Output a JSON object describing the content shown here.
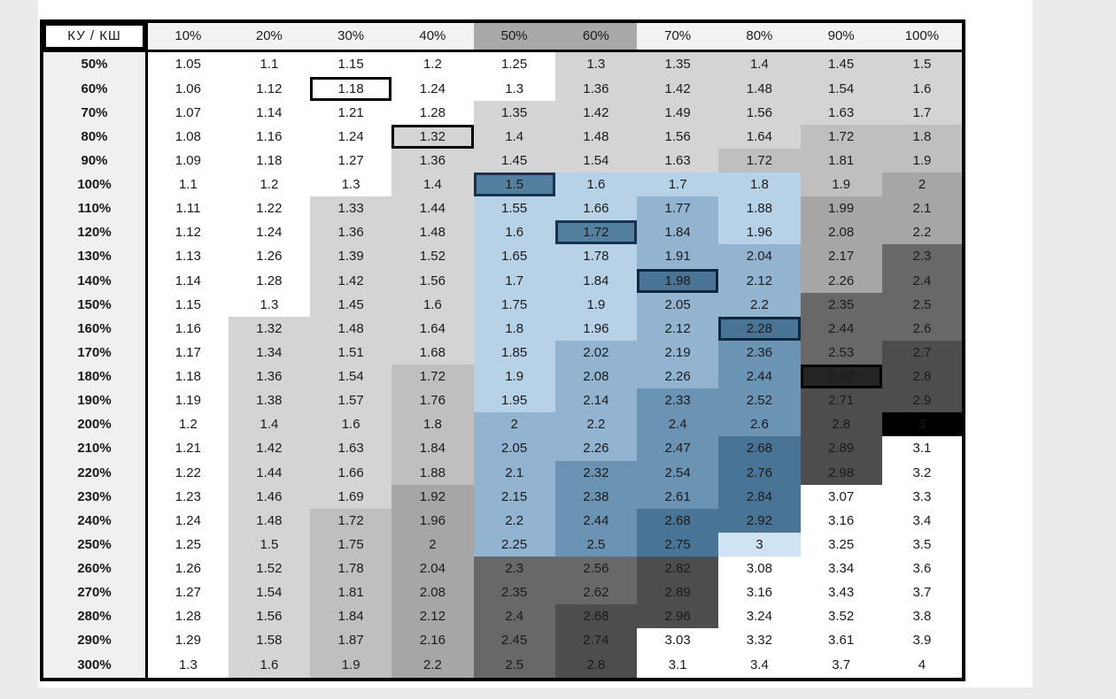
{
  "table": {
    "corner_label": "КУ / КШ",
    "col_headers": [
      "10%",
      "20%",
      "30%",
      "40%",
      "50%",
      "60%",
      "70%",
      "80%",
      "90%",
      "100%"
    ],
    "col_header_styles": [
      "h",
      "h",
      "h",
      "h",
      "hd",
      "hd",
      "h",
      "h",
      "h",
      "h"
    ],
    "row_headers": [
      "50%",
      "60%",
      "70%",
      "80%",
      "90%",
      "100%",
      "110%",
      "120%",
      "130%",
      "140%",
      "150%",
      "160%",
      "170%",
      "180%",
      "190%",
      "200%",
      "210%",
      "220%",
      "230%",
      "240%",
      "250%",
      "260%",
      "270%",
      "280%",
      "290%",
      "300%"
    ],
    "styles": [
      [
        "W",
        "W",
        "W",
        "W",
        "W",
        "G1",
        "G1",
        "G1",
        "G1",
        "G1"
      ],
      [
        "W",
        "W",
        "HW",
        "W",
        "W",
        "G1",
        "G1",
        "G1",
        "G1",
        "G1"
      ],
      [
        "W",
        "W",
        "W",
        "W",
        "G1",
        "G1",
        "G1",
        "G1",
        "G1",
        "G1"
      ],
      [
        "W",
        "W",
        "W",
        "HG",
        "G1",
        "G1",
        "G1",
        "G1",
        "G2a",
        "G2a"
      ],
      [
        "W",
        "W",
        "W",
        "G1",
        "G1",
        "G1",
        "G1",
        "G2a",
        "G2a",
        "G2a"
      ],
      [
        "W",
        "W",
        "W",
        "G1",
        "HB1",
        "B1",
        "B1",
        "B1",
        "G2a",
        "G2b"
      ],
      [
        "W",
        "W",
        "G1",
        "G1",
        "B1",
        "B1",
        "B2",
        "B1",
        "G2b",
        "G2b"
      ],
      [
        "W",
        "W",
        "G1",
        "G1",
        "B1",
        "HB1",
        "B2",
        "B1",
        "G2b",
        "G2b"
      ],
      [
        "W",
        "W",
        "G1",
        "G1",
        "B1",
        "B1",
        "B2",
        "B2",
        "G2b",
        "G3"
      ],
      [
        "W",
        "W",
        "G1",
        "G1",
        "B1",
        "B1",
        "HB2",
        "B2",
        "G2b",
        "G3"
      ],
      [
        "W",
        "W",
        "G1",
        "G1",
        "B1",
        "B1",
        "B2",
        "B2",
        "G3",
        "G3"
      ],
      [
        "W",
        "G1",
        "G1",
        "G1",
        "B1",
        "B1",
        "B2",
        "HB2",
        "G3",
        "G3"
      ],
      [
        "W",
        "G1",
        "G1",
        "G1",
        "B1",
        "B2",
        "B2",
        "B3",
        "G3",
        "G4"
      ],
      [
        "W",
        "G1",
        "G1",
        "G2a",
        "B1",
        "B2",
        "B2",
        "B3",
        "G5B",
        "G4"
      ],
      [
        "W",
        "G1",
        "G1",
        "G2a",
        "B1",
        "B2",
        "B3",
        "B3",
        "G4",
        "G4"
      ],
      [
        "W",
        "G1",
        "G1",
        "G2a",
        "B2",
        "B2",
        "B3",
        "B3",
        "G4",
        "BK"
      ],
      [
        "W",
        "G1",
        "G1",
        "G2a",
        "B2",
        "B2",
        "B3",
        "B4",
        "G4",
        "WB"
      ],
      [
        "W",
        "G1",
        "G1",
        "G2a",
        "B2",
        "B3",
        "B3",
        "B4",
        "G4",
        "WB"
      ],
      [
        "W",
        "G1",
        "G1",
        "G2b",
        "B2",
        "B3",
        "B3",
        "B4",
        "WB",
        "WB"
      ],
      [
        "W",
        "G1",
        "G2a",
        "G2b",
        "B2",
        "B3",
        "B4",
        "B4",
        "WB",
        "WB"
      ],
      [
        "W",
        "G1",
        "G2a",
        "G2b",
        "B2",
        "B3",
        "B4",
        "B1L",
        "WB",
        "WB"
      ],
      [
        "W",
        "G1",
        "G2a",
        "G2b",
        "G3",
        "G3",
        "G4",
        "WB",
        "WB",
        "WB"
      ],
      [
        "W",
        "G1",
        "G2a",
        "G2b",
        "G3",
        "G3",
        "G4",
        "WB",
        "WB",
        "WB"
      ],
      [
        "W",
        "G1",
        "G2a",
        "G2b",
        "G3",
        "G4",
        "G4",
        "WB",
        "WB",
        "WB"
      ],
      [
        "W",
        "G1",
        "G2a",
        "G2b",
        "G3",
        "G4",
        "WB",
        "WB",
        "WB",
        "WB"
      ],
      [
        "W",
        "G1",
        "G2a",
        "G2b",
        "G3",
        "G4",
        "WB",
        "WB",
        "WB",
        "WB"
      ]
    ],
    "highlighted_cells": [
      {
        "row": "60%",
        "col": "30%",
        "value": 1.18
      },
      {
        "row": "80%",
        "col": "40%",
        "value": 1.32
      },
      {
        "row": "100%",
        "col": "50%",
        "value": 1.5
      },
      {
        "row": "120%",
        "col": "60%",
        "value": 1.72
      },
      {
        "row": "140%",
        "col": "70%",
        "value": 1.98
      },
      {
        "row": "160%",
        "col": "80%",
        "value": 2.28
      },
      {
        "row": "180%",
        "col": "90%",
        "value": 2.62
      }
    ]
  },
  "chart_data": {
    "type": "heatmap",
    "title": "КУ / КШ",
    "x_categories": [
      "10%",
      "20%",
      "30%",
      "40%",
      "50%",
      "60%",
      "70%",
      "80%",
      "90%",
      "100%"
    ],
    "y_categories": [
      "50%",
      "60%",
      "70%",
      "80%",
      "90%",
      "100%",
      "110%",
      "120%",
      "130%",
      "140%",
      "150%",
      "160%",
      "170%",
      "180%",
      "190%",
      "200%",
      "210%",
      "220%",
      "230%",
      "240%",
      "250%",
      "260%",
      "270%",
      "280%",
      "290%",
      "300%"
    ],
    "values": [
      [
        1.05,
        1.1,
        1.15,
        1.2,
        1.25,
        1.3,
        1.35,
        1.4,
        1.45,
        1.5
      ],
      [
        1.06,
        1.12,
        1.18,
        1.24,
        1.3,
        1.36,
        1.42,
        1.48,
        1.54,
        1.6
      ],
      [
        1.07,
        1.14,
        1.21,
        1.28,
        1.35,
        1.42,
        1.49,
        1.56,
        1.63,
        1.7
      ],
      [
        1.08,
        1.16,
        1.24,
        1.32,
        1.4,
        1.48,
        1.56,
        1.64,
        1.72,
        1.8
      ],
      [
        1.09,
        1.18,
        1.27,
        1.36,
        1.45,
        1.54,
        1.63,
        1.72,
        1.81,
        1.9
      ],
      [
        1.1,
        1.2,
        1.3,
        1.4,
        1.5,
        1.6,
        1.7,
        1.8,
        1.9,
        2
      ],
      [
        1.11,
        1.22,
        1.33,
        1.44,
        1.55,
        1.66,
        1.77,
        1.88,
        1.99,
        2.1
      ],
      [
        1.12,
        1.24,
        1.36,
        1.48,
        1.6,
        1.72,
        1.84,
        1.96,
        2.08,
        2.2
      ],
      [
        1.13,
        1.26,
        1.39,
        1.52,
        1.65,
        1.78,
        1.91,
        2.04,
        2.17,
        2.3
      ],
      [
        1.14,
        1.28,
        1.42,
        1.56,
        1.7,
        1.84,
        1.98,
        2.12,
        2.26,
        2.4
      ],
      [
        1.15,
        1.3,
        1.45,
        1.6,
        1.75,
        1.9,
        2.05,
        2.2,
        2.35,
        2.5
      ],
      [
        1.16,
        1.32,
        1.48,
        1.64,
        1.8,
        1.96,
        2.12,
        2.28,
        2.44,
        2.6
      ],
      [
        1.17,
        1.34,
        1.51,
        1.68,
        1.85,
        2.02,
        2.19,
        2.36,
        2.53,
        2.7
      ],
      [
        1.18,
        1.36,
        1.54,
        1.72,
        1.9,
        2.08,
        2.26,
        2.44,
        2.62,
        2.8
      ],
      [
        1.19,
        1.38,
        1.57,
        1.76,
        1.95,
        2.14,
        2.33,
        2.52,
        2.71,
        2.9
      ],
      [
        1.2,
        1.4,
        1.6,
        1.8,
        2,
        2.2,
        2.4,
        2.6,
        2.8,
        3
      ],
      [
        1.21,
        1.42,
        1.63,
        1.84,
        2.05,
        2.26,
        2.47,
        2.68,
        2.89,
        3.1
      ],
      [
        1.22,
        1.44,
        1.66,
        1.88,
        2.1,
        2.32,
        2.54,
        2.76,
        2.98,
        3.2
      ],
      [
        1.23,
        1.46,
        1.69,
        1.92,
        2.15,
        2.38,
        2.61,
        2.84,
        3.07,
        3.3
      ],
      [
        1.24,
        1.48,
        1.72,
        1.96,
        2.2,
        2.44,
        2.68,
        2.92,
        3.16,
        3.4
      ],
      [
        1.25,
        1.5,
        1.75,
        2,
        2.25,
        2.5,
        2.75,
        3,
        3.25,
        3.5
      ],
      [
        1.26,
        1.52,
        1.78,
        2.04,
        2.3,
        2.56,
        2.82,
        3.08,
        3.34,
        3.6
      ],
      [
        1.27,
        1.54,
        1.81,
        2.08,
        2.35,
        2.62,
        2.89,
        3.16,
        3.43,
        3.7
      ],
      [
        1.28,
        1.56,
        1.84,
        2.12,
        2.4,
        2.68,
        2.96,
        3.24,
        3.52,
        3.8
      ],
      [
        1.29,
        1.58,
        1.87,
        2.16,
        2.45,
        2.74,
        3.03,
        3.32,
        3.61,
        3.9
      ],
      [
        1.3,
        1.6,
        1.9,
        2.2,
        2.5,
        2.8,
        3.1,
        3.4,
        3.7,
        4
      ]
    ],
    "legend_position": "none",
    "grid": false
  },
  "colors": {
    "page_bg": "#ebebeb",
    "sheet_bg": "#ffffff",
    "header_light": "#f2f2f2",
    "header_dark": "#a9a9a9",
    "row_label_bg": "#f0f0f0",
    "band_white": "#ffffff",
    "band_gray_light": "#d4d4d4",
    "band_gray_mid1": "#bfbfbf",
    "band_gray_mid2": "#a6a6a6",
    "band_gray_dark": "#686868",
    "band_gray_darker": "#4d4d4d",
    "band_near_black": "#242424",
    "band_black": "#000000",
    "band_blue_light": "#b7d2e6",
    "band_blue_lighter": "#cfe3f3",
    "band_blue_medium": "#92b4d0",
    "band_blue_dark": "#6b93b3",
    "band_blue_darker": "#4a7495",
    "highlight_blue_fill": "#54809f",
    "highlight_border_navy": "#16324f",
    "highlight_border_black": "#000000",
    "text_navy": "#1d3c55",
    "text_white": "#ffffff",
    "text_black": "#1a1a1a"
  }
}
